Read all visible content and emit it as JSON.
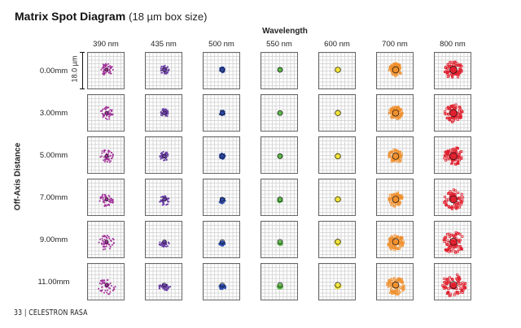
{
  "title": {
    "main": "Matrix Spot Diagram",
    "sub": "(18 µm box size)"
  },
  "column_axis_label": "Wavelength",
  "row_axis_label": "Off-Axis Distance",
  "scale_label": "18.0 µm",
  "wavelengths": [
    {
      "label": "390 nm",
      "color": "#a2309a"
    },
    {
      "label": "435 nm",
      "color": "#6b3fa6"
    },
    {
      "label": "500 nm",
      "color": "#2a48a8"
    },
    {
      "label": "550 nm",
      "color": "#5cb848"
    },
    {
      "label": "600 nm",
      "color": "#f2e43a"
    },
    {
      "label": "700 nm",
      "color": "#f0902e"
    },
    {
      "label": "800 nm",
      "color": "#e0202e"
    }
  ],
  "field_positions": [
    "0.00mm",
    "3.00mm",
    "5.00mm",
    "7.00mm",
    "9.00mm",
    "11.00mm"
  ],
  "footer": "33 | CELESTRON RASA"
}
